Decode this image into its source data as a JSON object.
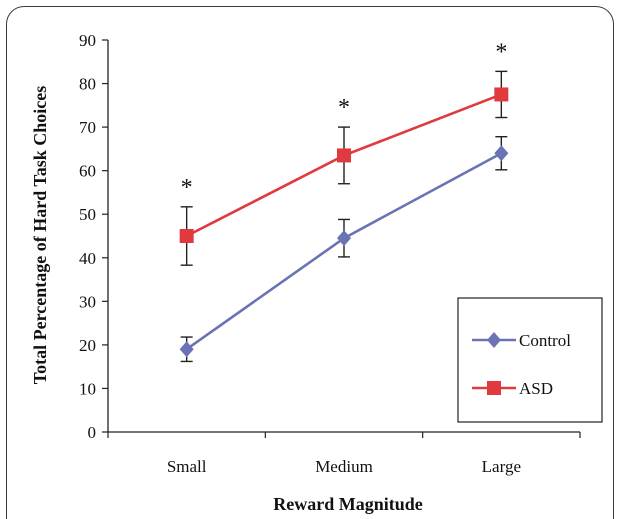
{
  "chart_data": {
    "type": "line",
    "title": "",
    "xlabel": "Reward Magnitude",
    "ylabel": "Total Percentage of Hard Task Choices",
    "ylim": [
      0,
      90
    ],
    "yticks": [
      "0",
      "10",
      "20",
      "30",
      "40",
      "50",
      "60",
      "70",
      "80",
      "90"
    ],
    "categories": [
      "Small",
      "Medium",
      "Large"
    ],
    "series": [
      {
        "name": "Control",
        "values": [
          19,
          44.5,
          64
        ],
        "error": [
          2.8,
          4.3,
          3.8
        ],
        "color": "#6a73b4",
        "marker": "diamond"
      },
      {
        "name": "ASD",
        "values": [
          45,
          63.5,
          77.5
        ],
        "error": [
          6.7,
          6.5,
          5.3
        ],
        "color": "#e03a3e",
        "marker": "square"
      }
    ],
    "annotations": [
      "*",
      "*",
      "*"
    ],
    "legend": "bottom-right",
    "grid": false
  }
}
